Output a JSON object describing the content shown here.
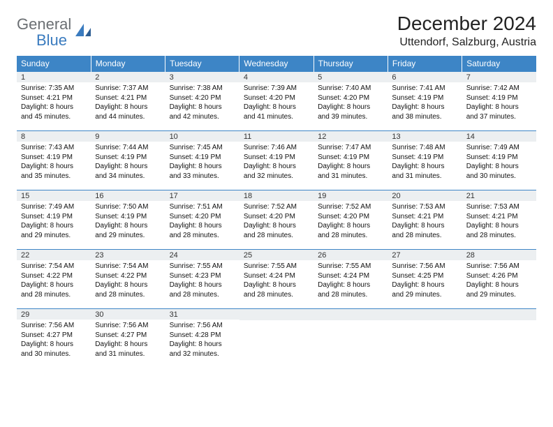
{
  "brand": {
    "word1": "General",
    "word2": "Blue"
  },
  "title": "December 2024",
  "location": "Uttendorf, Salzburg, Austria",
  "colors": {
    "header_bg": "#3d85c6",
    "header_fg": "#ffffff",
    "daynum_bg": "#eceff1",
    "rule": "#3d85c6",
    "logo_gray": "#6b6f73",
    "logo_blue": "#3a7bbf"
  },
  "weekdays": [
    "Sunday",
    "Monday",
    "Tuesday",
    "Wednesday",
    "Thursday",
    "Friday",
    "Saturday"
  ],
  "weeks": [
    [
      {
        "n": "1",
        "sr": "7:35 AM",
        "ss": "4:21 PM",
        "dl": "8 hours and 45 minutes."
      },
      {
        "n": "2",
        "sr": "7:37 AM",
        "ss": "4:21 PM",
        "dl": "8 hours and 44 minutes."
      },
      {
        "n": "3",
        "sr": "7:38 AM",
        "ss": "4:20 PM",
        "dl": "8 hours and 42 minutes."
      },
      {
        "n": "4",
        "sr": "7:39 AM",
        "ss": "4:20 PM",
        "dl": "8 hours and 41 minutes."
      },
      {
        "n": "5",
        "sr": "7:40 AM",
        "ss": "4:20 PM",
        "dl": "8 hours and 39 minutes."
      },
      {
        "n": "6",
        "sr": "7:41 AM",
        "ss": "4:19 PM",
        "dl": "8 hours and 38 minutes."
      },
      {
        "n": "7",
        "sr": "7:42 AM",
        "ss": "4:19 PM",
        "dl": "8 hours and 37 minutes."
      }
    ],
    [
      {
        "n": "8",
        "sr": "7:43 AM",
        "ss": "4:19 PM",
        "dl": "8 hours and 35 minutes."
      },
      {
        "n": "9",
        "sr": "7:44 AM",
        "ss": "4:19 PM",
        "dl": "8 hours and 34 minutes."
      },
      {
        "n": "10",
        "sr": "7:45 AM",
        "ss": "4:19 PM",
        "dl": "8 hours and 33 minutes."
      },
      {
        "n": "11",
        "sr": "7:46 AM",
        "ss": "4:19 PM",
        "dl": "8 hours and 32 minutes."
      },
      {
        "n": "12",
        "sr": "7:47 AM",
        "ss": "4:19 PM",
        "dl": "8 hours and 31 minutes."
      },
      {
        "n": "13",
        "sr": "7:48 AM",
        "ss": "4:19 PM",
        "dl": "8 hours and 31 minutes."
      },
      {
        "n": "14",
        "sr": "7:49 AM",
        "ss": "4:19 PM",
        "dl": "8 hours and 30 minutes."
      }
    ],
    [
      {
        "n": "15",
        "sr": "7:49 AM",
        "ss": "4:19 PM",
        "dl": "8 hours and 29 minutes."
      },
      {
        "n": "16",
        "sr": "7:50 AM",
        "ss": "4:19 PM",
        "dl": "8 hours and 29 minutes."
      },
      {
        "n": "17",
        "sr": "7:51 AM",
        "ss": "4:20 PM",
        "dl": "8 hours and 28 minutes."
      },
      {
        "n": "18",
        "sr": "7:52 AM",
        "ss": "4:20 PM",
        "dl": "8 hours and 28 minutes."
      },
      {
        "n": "19",
        "sr": "7:52 AM",
        "ss": "4:20 PM",
        "dl": "8 hours and 28 minutes."
      },
      {
        "n": "20",
        "sr": "7:53 AM",
        "ss": "4:21 PM",
        "dl": "8 hours and 28 minutes."
      },
      {
        "n": "21",
        "sr": "7:53 AM",
        "ss": "4:21 PM",
        "dl": "8 hours and 28 minutes."
      }
    ],
    [
      {
        "n": "22",
        "sr": "7:54 AM",
        "ss": "4:22 PM",
        "dl": "8 hours and 28 minutes."
      },
      {
        "n": "23",
        "sr": "7:54 AM",
        "ss": "4:22 PM",
        "dl": "8 hours and 28 minutes."
      },
      {
        "n": "24",
        "sr": "7:55 AM",
        "ss": "4:23 PM",
        "dl": "8 hours and 28 minutes."
      },
      {
        "n": "25",
        "sr": "7:55 AM",
        "ss": "4:24 PM",
        "dl": "8 hours and 28 minutes."
      },
      {
        "n": "26",
        "sr": "7:55 AM",
        "ss": "4:24 PM",
        "dl": "8 hours and 28 minutes."
      },
      {
        "n": "27",
        "sr": "7:56 AM",
        "ss": "4:25 PM",
        "dl": "8 hours and 29 minutes."
      },
      {
        "n": "28",
        "sr": "7:56 AM",
        "ss": "4:26 PM",
        "dl": "8 hours and 29 minutes."
      }
    ],
    [
      {
        "n": "29",
        "sr": "7:56 AM",
        "ss": "4:27 PM",
        "dl": "8 hours and 30 minutes."
      },
      {
        "n": "30",
        "sr": "7:56 AM",
        "ss": "4:27 PM",
        "dl": "8 hours and 31 minutes."
      },
      {
        "n": "31",
        "sr": "7:56 AM",
        "ss": "4:28 PM",
        "dl": "8 hours and 32 minutes."
      },
      null,
      null,
      null,
      null
    ]
  ],
  "labels": {
    "sunrise": "Sunrise: ",
    "sunset": "Sunset: ",
    "daylight": "Daylight: "
  },
  "font": {
    "title_pt": 28,
    "location_pt": 16,
    "weekday_pt": 12,
    "daynum_pt": 11,
    "body_pt": 10
  }
}
